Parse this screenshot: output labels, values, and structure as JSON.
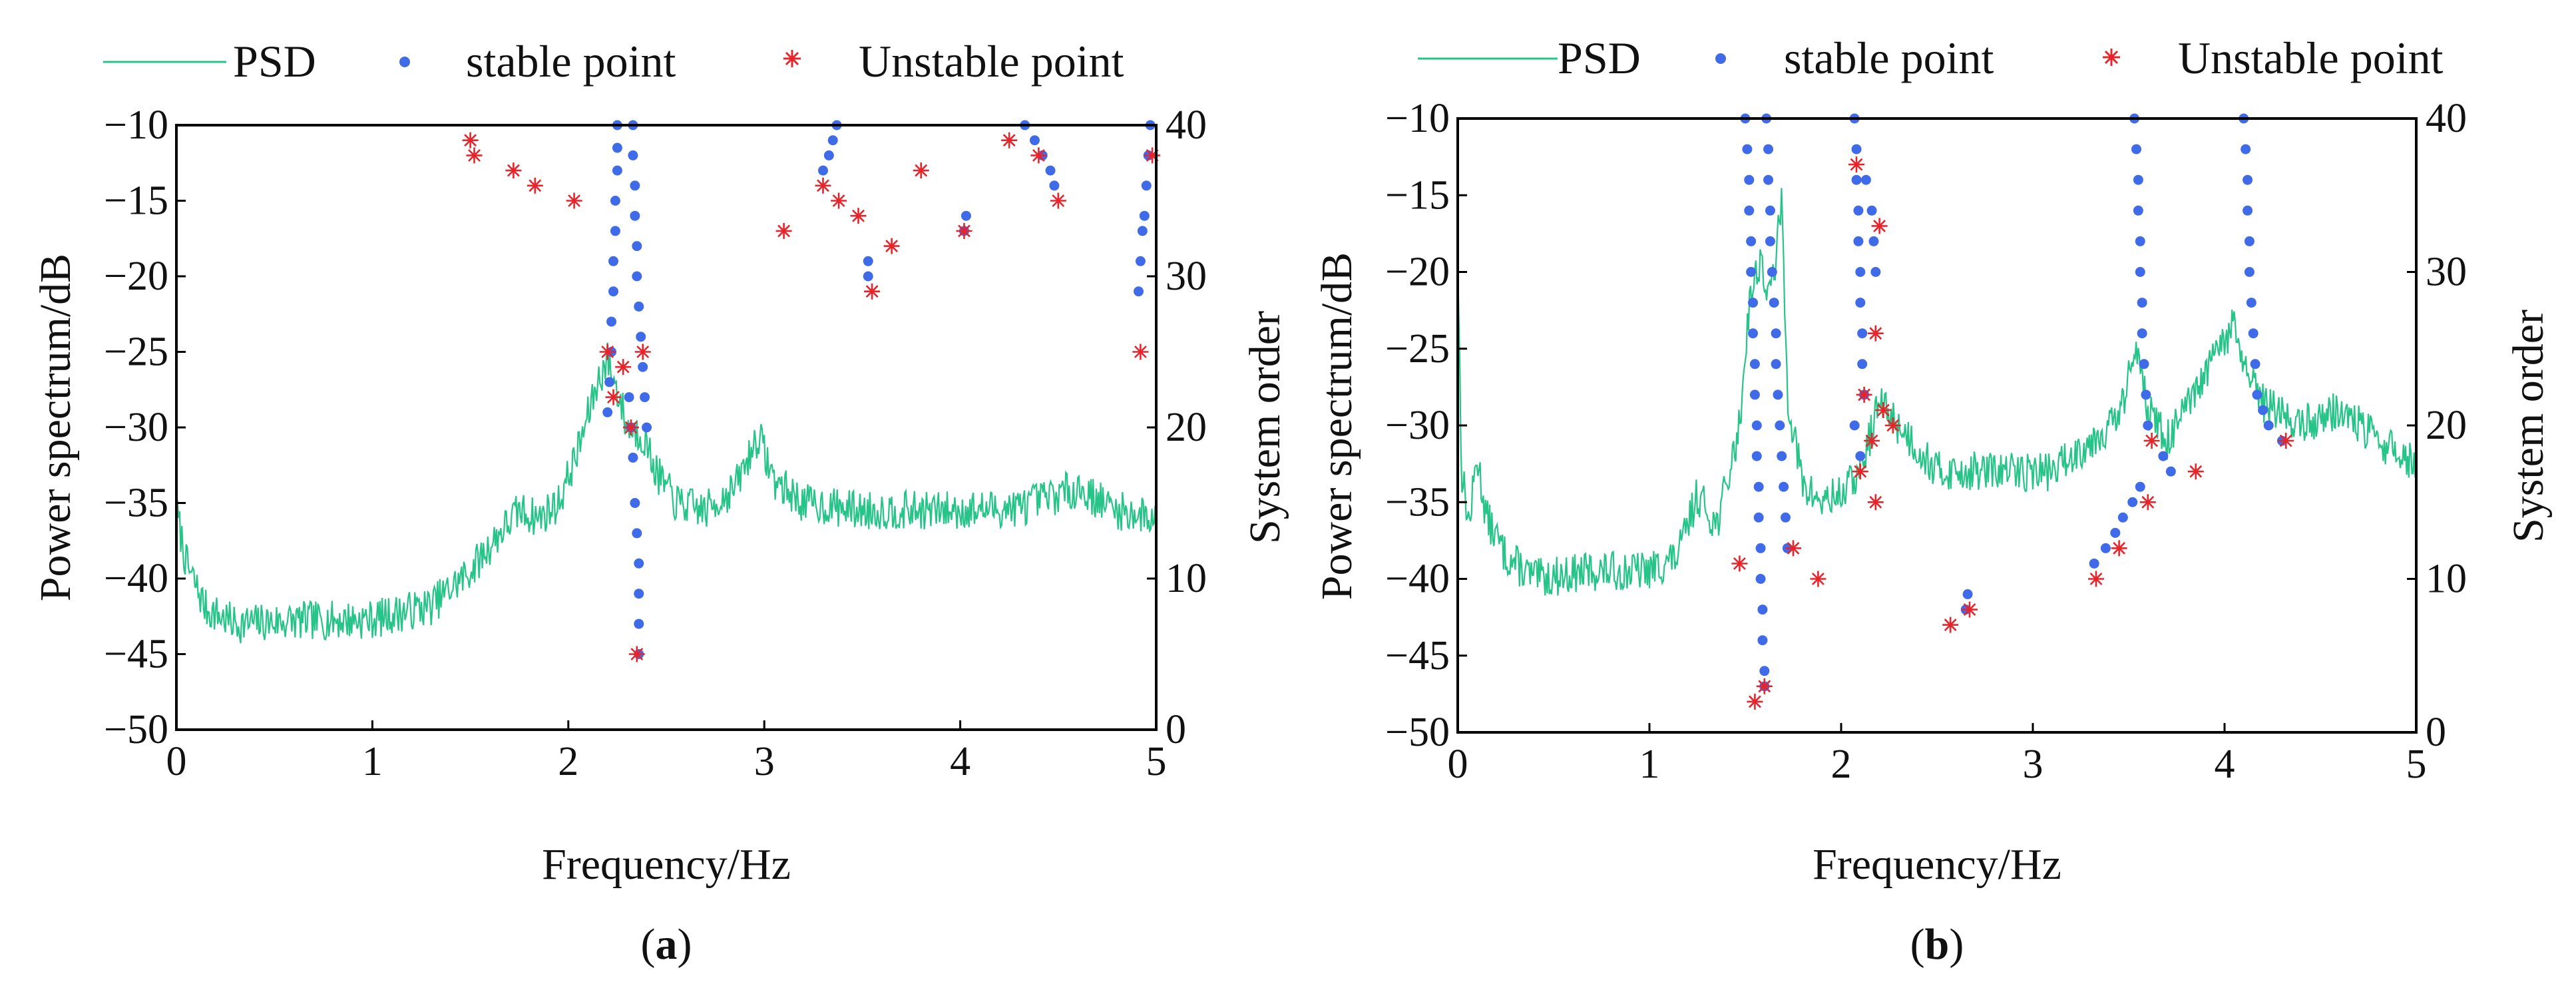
{
  "chart_data": [
    {
      "type": "line",
      "panel": "a",
      "caption_letter": "a",
      "xlabel": "Frequency/Hz",
      "ylabel_left": "Power spectrum/dB",
      "ylabel_right": "System order",
      "xlim": [
        0,
        5
      ],
      "ylim_left": [
        -50,
        -10
      ],
      "ylim_right": [
        0,
        40
      ],
      "xticks": [
        "0",
        "1",
        "2",
        "3",
        "4",
        "5"
      ],
      "yticks_left": [
        "−50",
        "−45",
        "−40",
        "−35",
        "−30",
        "−25",
        "−20",
        "−15",
        "−10"
      ],
      "yticks_right": [
        "0",
        "10",
        "20",
        "30",
        "40"
      ],
      "legend": [
        "PSD",
        "stable point",
        "Unstable point"
      ],
      "colors": {
        "psd": "#26c488",
        "stable": "#3f6be8",
        "unstable": "#e8232a"
      },
      "psd_knots": [
        [
          0,
          -35.5
        ],
        [
          0.05,
          -39
        ],
        [
          0.15,
          -42
        ],
        [
          0.3,
          -43
        ],
        [
          0.6,
          -42.8
        ],
        [
          1.0,
          -42.7
        ],
        [
          1.3,
          -41.8
        ],
        [
          1.5,
          -39.5
        ],
        [
          1.65,
          -37
        ],
        [
          1.75,
          -35.5
        ],
        [
          1.85,
          -36
        ],
        [
          1.95,
          -35
        ],
        [
          2.05,
          -31.5
        ],
        [
          2.15,
          -27
        ],
        [
          2.2,
          -25.5
        ],
        [
          2.26,
          -28
        ],
        [
          2.3,
          -30
        ],
        [
          2.38,
          -30.5
        ],
        [
          2.45,
          -33
        ],
        [
          2.55,
          -35
        ],
        [
          2.7,
          -35.5
        ],
        [
          2.85,
          -34
        ],
        [
          2.97,
          -30.5
        ],
        [
          3.05,
          -33.5
        ],
        [
          3.2,
          -35
        ],
        [
          3.5,
          -35.5
        ],
        [
          4.0,
          -35.5
        ],
        [
          4.3,
          -35.3
        ],
        [
          4.6,
          -34
        ],
        [
          4.8,
          -35.5
        ],
        [
          5.0,
          -36
        ]
      ],
      "stable_points": [
        [
          2.2,
          21
        ],
        [
          2.21,
          23
        ],
        [
          2.22,
          25
        ],
        [
          2.22,
          27
        ],
        [
          2.23,
          29
        ],
        [
          2.23,
          31
        ],
        [
          2.24,
          33
        ],
        [
          2.24,
          35
        ],
        [
          2.25,
          37
        ],
        [
          2.25,
          38.5
        ],
        [
          2.25,
          40
        ],
        [
          2.31,
          22
        ],
        [
          2.32,
          20
        ],
        [
          2.33,
          18
        ],
        [
          2.34,
          15
        ],
        [
          2.35,
          13
        ],
        [
          2.36,
          11
        ],
        [
          2.36,
          9
        ],
        [
          2.36,
          7
        ],
        [
          2.36,
          5
        ],
        [
          2.33,
          40
        ],
        [
          2.33,
          38
        ],
        [
          2.34,
          36
        ],
        [
          2.34,
          34
        ],
        [
          2.35,
          32
        ],
        [
          2.35,
          30
        ],
        [
          2.36,
          28
        ],
        [
          2.37,
          26
        ],
        [
          2.38,
          24
        ],
        [
          2.39,
          22
        ],
        [
          2.4,
          20
        ],
        [
          3.3,
          37
        ],
        [
          3.33,
          38
        ],
        [
          3.35,
          39
        ],
        [
          3.37,
          40
        ],
        [
          3.53,
          31
        ],
        [
          3.53,
          30
        ],
        [
          4.02,
          33
        ],
        [
          4.03,
          34
        ],
        [
          4.33,
          40
        ],
        [
          4.38,
          39
        ],
        [
          4.42,
          38
        ],
        [
          4.46,
          37
        ],
        [
          4.48,
          36
        ],
        [
          4.91,
          29
        ],
        [
          4.92,
          31
        ],
        [
          4.93,
          33
        ],
        [
          4.94,
          34
        ],
        [
          4.95,
          36
        ],
        [
          4.96,
          38
        ],
        [
          4.97,
          40
        ]
      ],
      "unstable_points": [
        [
          1.5,
          39
        ],
        [
          1.52,
          38
        ],
        [
          1.72,
          37
        ],
        [
          1.83,
          36
        ],
        [
          2.03,
          35
        ],
        [
          2.2,
          25
        ],
        [
          2.23,
          22
        ],
        [
          2.28,
          24
        ],
        [
          2.32,
          20
        ],
        [
          2.38,
          25
        ],
        [
          2.35,
          5
        ],
        [
          3.1,
          33
        ],
        [
          3.3,
          36
        ],
        [
          3.38,
          35
        ],
        [
          3.48,
          34
        ],
        [
          3.55,
          29
        ],
        [
          3.65,
          32
        ],
        [
          3.8,
          37
        ],
        [
          4.02,
          33
        ],
        [
          4.25,
          39
        ],
        [
          4.4,
          38
        ],
        [
          4.5,
          35
        ],
        [
          4.92,
          25
        ],
        [
          4.98,
          38
        ]
      ],
      "psd_seed": 7
    },
    {
      "type": "line",
      "panel": "b",
      "caption_letter": "b",
      "xlabel": "Frequency/Hz",
      "ylabel_left": "Power spectrum/dB",
      "ylabel_right": "System order",
      "xlim": [
        0,
        5
      ],
      "ylim_left": [
        -50,
        -10
      ],
      "ylim_right": [
        0,
        40
      ],
      "xticks": [
        "0",
        "1",
        "2",
        "3",
        "4",
        "5"
      ],
      "yticks_left": [
        "−50",
        "−45",
        "−40",
        "−35",
        "−30",
        "−25",
        "−20",
        "−15",
        "−10"
      ],
      "yticks_right": [
        "0",
        "10",
        "20",
        "30",
        "40"
      ],
      "legend": [
        "PSD",
        "stable point",
        "Unstable point"
      ],
      "colors": {
        "psd": "#26c488",
        "stable": "#3f6be8",
        "unstable": "#e8232a"
      },
      "psd_knots": [
        [
          0,
          -19
        ],
        [
          0.02,
          -33
        ],
        [
          0.06,
          -36.5
        ],
        [
          0.1,
          -32
        ],
        [
          0.15,
          -36
        ],
        [
          0.25,
          -38.5
        ],
        [
          0.4,
          -40
        ],
        [
          0.7,
          -39.5
        ],
        [
          1.0,
          -39.5
        ],
        [
          1.15,
          -38.5
        ],
        [
          1.25,
          -34.5
        ],
        [
          1.35,
          -36.5
        ],
        [
          1.42,
          -33
        ],
        [
          1.47,
          -30
        ],
        [
          1.52,
          -22
        ],
        [
          1.58,
          -19
        ],
        [
          1.62,
          -22
        ],
        [
          1.66,
          -19
        ],
        [
          1.69,
          -15.5
        ],
        [
          1.72,
          -28
        ],
        [
          1.8,
          -34
        ],
        [
          1.9,
          -35
        ],
        [
          2.0,
          -34.5
        ],
        [
          2.1,
          -33
        ],
        [
          2.2,
          -28.5
        ],
        [
          2.3,
          -30
        ],
        [
          2.5,
          -33
        ],
        [
          2.8,
          -33
        ],
        [
          3.1,
          -33
        ],
        [
          3.3,
          -31
        ],
        [
          3.45,
          -29.5
        ],
        [
          3.55,
          -24.5
        ],
        [
          3.6,
          -29
        ],
        [
          3.7,
          -31
        ],
        [
          3.85,
          -28
        ],
        [
          3.95,
          -25.5
        ],
        [
          4.05,
          -23.5
        ],
        [
          4.12,
          -27
        ],
        [
          4.2,
          -28.5
        ],
        [
          4.4,
          -30
        ],
        [
          4.6,
          -29
        ],
        [
          4.8,
          -31
        ],
        [
          5.0,
          -32.5
        ]
      ],
      "stable_points": [
        [
          1.5,
          40
        ],
        [
          1.51,
          38
        ],
        [
          1.52,
          36
        ],
        [
          1.52,
          34
        ],
        [
          1.53,
          32
        ],
        [
          1.53,
          30
        ],
        [
          1.54,
          28
        ],
        [
          1.54,
          26
        ],
        [
          1.55,
          24
        ],
        [
          1.55,
          22
        ],
        [
          1.56,
          20
        ],
        [
          1.56,
          18
        ],
        [
          1.57,
          16
        ],
        [
          1.57,
          14
        ],
        [
          1.58,
          12
        ],
        [
          1.58,
          10
        ],
        [
          1.59,
          8
        ],
        [
          1.59,
          6
        ],
        [
          1.6,
          4
        ],
        [
          1.6,
          3
        ],
        [
          1.61,
          40
        ],
        [
          1.62,
          38
        ],
        [
          1.62,
          36
        ],
        [
          1.63,
          34
        ],
        [
          1.63,
          32
        ],
        [
          1.64,
          30
        ],
        [
          1.65,
          28
        ],
        [
          1.66,
          26
        ],
        [
          1.66,
          24
        ],
        [
          1.67,
          22
        ],
        [
          1.68,
          20
        ],
        [
          1.69,
          18
        ],
        [
          1.7,
          16
        ],
        [
          1.71,
          14
        ],
        [
          1.72,
          12
        ],
        [
          2.07,
          20
        ],
        [
          2.1,
          18
        ],
        [
          2.07,
          40
        ],
        [
          2.08,
          38
        ],
        [
          2.08,
          36
        ],
        [
          2.09,
          34
        ],
        [
          2.09,
          32
        ],
        [
          2.1,
          30
        ],
        [
          2.1,
          28
        ],
        [
          2.11,
          26
        ],
        [
          2.11,
          24
        ],
        [
          2.12,
          22
        ],
        [
          2.13,
          36
        ],
        [
          2.16,
          34
        ],
        [
          2.17,
          32
        ],
        [
          2.18,
          30
        ],
        [
          2.65,
          8
        ],
        [
          2.66,
          9
        ],
        [
          3.32,
          11
        ],
        [
          3.38,
          12
        ],
        [
          3.43,
          13
        ],
        [
          3.47,
          14
        ],
        [
          3.52,
          15
        ],
        [
          3.56,
          16
        ],
        [
          3.53,
          40
        ],
        [
          3.54,
          38
        ],
        [
          3.55,
          36
        ],
        [
          3.55,
          34
        ],
        [
          3.56,
          32
        ],
        [
          3.56,
          30
        ],
        [
          3.57,
          28
        ],
        [
          3.57,
          26
        ],
        [
          3.58,
          24
        ],
        [
          3.59,
          22
        ],
        [
          3.6,
          20
        ],
        [
          3.68,
          18
        ],
        [
          3.72,
          17
        ],
        [
          4.1,
          40
        ],
        [
          4.11,
          38
        ],
        [
          4.12,
          36
        ],
        [
          4.12,
          34
        ],
        [
          4.13,
          32
        ],
        [
          4.13,
          30
        ],
        [
          4.14,
          28
        ],
        [
          4.15,
          26
        ],
        [
          4.16,
          24
        ],
        [
          4.17,
          22
        ],
        [
          4.2,
          21
        ],
        [
          4.23,
          20
        ],
        [
          4.3,
          19
        ]
      ],
      "unstable_points": [
        [
          1.47,
          11
        ],
        [
          1.55,
          2
        ],
        [
          1.6,
          3
        ],
        [
          1.75,
          12
        ],
        [
          1.88,
          10
        ],
        [
          2.08,
          37
        ],
        [
          2.1,
          17
        ],
        [
          2.12,
          22
        ],
        [
          2.16,
          19
        ],
        [
          2.18,
          15
        ],
        [
          2.18,
          26
        ],
        [
          2.2,
          33
        ],
        [
          2.22,
          21
        ],
        [
          2.27,
          20
        ],
        [
          2.57,
          7
        ],
        [
          2.67,
          8
        ],
        [
          3.33,
          10
        ],
        [
          3.45,
          12
        ],
        [
          3.6,
          15
        ],
        [
          3.62,
          19
        ],
        [
          3.85,
          17
        ],
        [
          4.32,
          19
        ]
      ],
      "psd_seed": 13
    }
  ]
}
